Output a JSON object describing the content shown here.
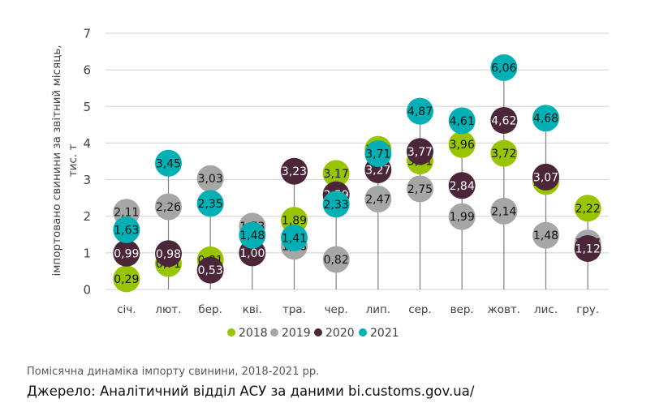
{
  "chart_data": {
    "type": "scatter",
    "subtype": "dot-plot-with-stems",
    "title": "",
    "xlabel": "",
    "ylabel": "імпортовано свинини за звітний місяць, тис. т",
    "ylabel_lines": [
      "імпортовано свинини за звітний місяць,",
      "тис. т"
    ],
    "ylim": [
      0,
      7
    ],
    "yticks": [
      "0",
      "1",
      "2",
      "3",
      "4",
      "5",
      "6",
      "7"
    ],
    "grid": true,
    "legend_position": "bottom",
    "categories": [
      "січ.",
      "лют.",
      "бер.",
      "кві.",
      "тра.",
      "чер.",
      "лип.",
      "сер.",
      "вер.",
      "жовт.",
      "лис.",
      "гру."
    ],
    "series": [
      {
        "name": "2018",
        "color": "#99c500",
        "label_color": "#111111",
        "values": [
          0.29,
          0.71,
          0.81,
          null,
          1.89,
          3.17,
          3.83,
          3.51,
          3.96,
          3.72,
          2.95,
          2.22
        ],
        "labels": [
          "0,29",
          "0,71",
          "0,81",
          null,
          "1,89",
          "3,17",
          "3,83",
          "3,51",
          "3,96",
          "3,72",
          "2,95",
          "2,22"
        ]
      },
      {
        "name": "2019",
        "color": "#a6a6a6",
        "label_color": "#111111",
        "values": [
          2.11,
          2.26,
          3.03,
          1.73,
          1.18,
          0.82,
          2.47,
          2.75,
          1.99,
          2.14,
          1.48,
          1.27
        ],
        "labels": [
          "2,11",
          "2,26",
          "3,03",
          "1,73",
          "1,18",
          "0,82",
          "2,47",
          "2,75",
          "1,99",
          "2,14",
          "1,48",
          "1,27"
        ]
      },
      {
        "name": "2020",
        "color": "#4b2638",
        "label_color": "#ffffff",
        "values": [
          0.99,
          0.98,
          0.53,
          1.0,
          3.23,
          2.59,
          3.27,
          3.77,
          2.84,
          4.62,
          3.07,
          1.12
        ],
        "labels": [
          "0,99",
          "0,98",
          "0,53",
          "1,00",
          "3,23",
          "2,59",
          "3,27",
          "3,77",
          "2,84",
          "4,62",
          "3,07",
          "1,12"
        ]
      },
      {
        "name": "2021",
        "color": "#00b0b4",
        "label_color": "#111111",
        "values": [
          1.63,
          3.45,
          2.35,
          1.48,
          1.41,
          2.33,
          3.71,
          4.87,
          4.61,
          6.06,
          4.68,
          null
        ],
        "labels": [
          "1,63",
          "3,45",
          "2,35",
          "1,48",
          "1,41",
          "2,33",
          "3,71",
          "4,87",
          "4,61",
          "6,06",
          "4,68",
          null
        ]
      }
    ]
  },
  "footer": {
    "caption": "Помісячна динаміка імпорту свинини, 2018-2021 рр.",
    "source": "Джерело: Аналітичний відділ АСУ за даними bi.customs.gov.ua/"
  }
}
